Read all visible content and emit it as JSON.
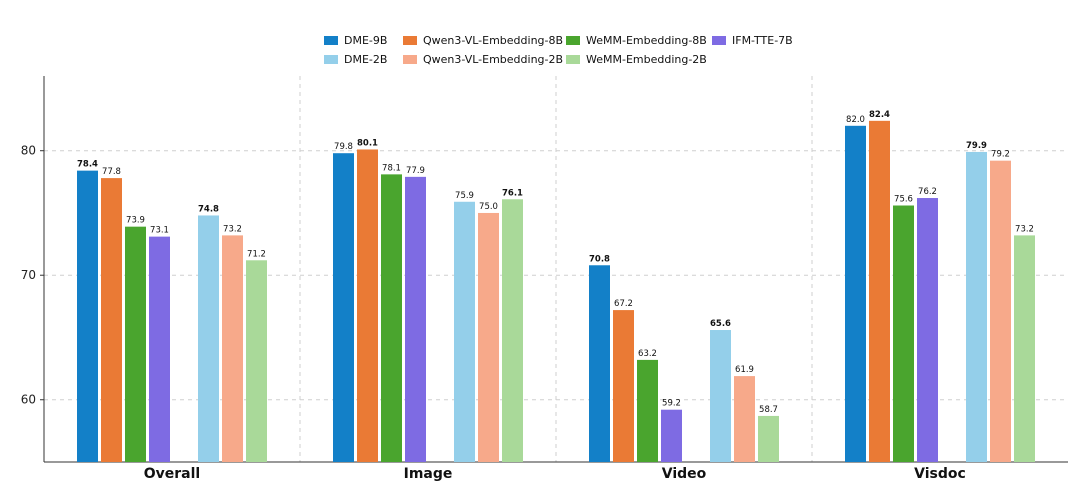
{
  "chart_data": {
    "type": "bar",
    "categories": [
      "Overall",
      "Image",
      "Video",
      "Visdoc"
    ],
    "ylim": [
      55,
      86
    ],
    "yticks": [
      60,
      70,
      80
    ],
    "grid": true,
    "legend_position": "top-center",
    "series": [
      {
        "name": "DME-9B",
        "color": "#1380c8",
        "group": 0,
        "values": [
          78.4,
          79.8,
          70.8,
          82.0
        ]
      },
      {
        "name": "Qwen3-VL-Embedding-8B",
        "color": "#ea7a35",
        "group": 0,
        "values": [
          77.8,
          80.1,
          67.2,
          82.4
        ]
      },
      {
        "name": "WeMM-Embedding-8B",
        "color": "#4aa52e",
        "group": 0,
        "values": [
          73.9,
          78.1,
          63.2,
          75.6
        ]
      },
      {
        "name": "IFM-TTE-7B",
        "color": "#7e6be3",
        "group": 0,
        "values": [
          73.1,
          77.9,
          59.2,
          76.2
        ]
      },
      {
        "name": "DME-2B",
        "color": "#94cfea",
        "group": 1,
        "values": [
          74.8,
          75.9,
          65.6,
          79.9
        ]
      },
      {
        "name": "Qwen3-VL-Embedding-2B",
        "color": "#f7a98a",
        "group": 1,
        "values": [
          73.2,
          75.0,
          61.9,
          79.2
        ]
      },
      {
        "name": "WeMM-Embedding-2B",
        "color": "#a9d999",
        "group": 1,
        "values": [
          71.2,
          76.1,
          58.7,
          73.2
        ]
      }
    ],
    "value_labels": [
      [
        "78.4",
        "77.8",
        "73.9",
        "73.1",
        "74.8",
        "73.2",
        "71.2"
      ],
      [
        "79.8",
        "80.1",
        "78.1",
        "77.9",
        "75.9",
        "75.0",
        "76.1"
      ],
      [
        "70.8",
        "67.2",
        "63.2",
        "59.2",
        "65.6",
        "61.9",
        "58.7"
      ],
      [
        "82.0",
        "82.4",
        "75.6",
        "76.2",
        "79.9",
        "79.2",
        "73.2"
      ]
    ],
    "best_in_group": [
      [
        0,
        4
      ],
      [
        1,
        6
      ],
      [
        0,
        4
      ],
      [
        1,
        4
      ]
    ],
    "legend_order": [
      0,
      1,
      2,
      3,
      4,
      5,
      6
    ]
  }
}
